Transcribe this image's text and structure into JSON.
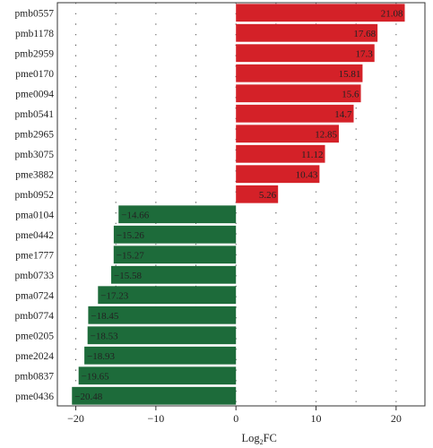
{
  "chart_data": {
    "type": "bar",
    "orientation": "horizontal",
    "categories": [
      "pmb0557",
      "pmb1178",
      "pmb2959",
      "pme0170",
      "pme0094",
      "pmb0541",
      "pmb2965",
      "pmb3075",
      "pme3882",
      "pmb0952",
      "pma0104",
      "pme0442",
      "pme1777",
      "pmb0733",
      "pma0724",
      "pmb0774",
      "pme0205",
      "pme2024",
      "pmb0837",
      "pme0436"
    ],
    "values": [
      21.08,
      17.68,
      17.3,
      15.81,
      15.6,
      14.7,
      12.85,
      11.12,
      10.43,
      5.26,
      -14.66,
      -15.26,
      -15.27,
      -15.58,
      -17.23,
      -18.45,
      -18.53,
      -18.93,
      -19.65,
      -20.48
    ],
    "value_labels": [
      "21.08",
      "17.68",
      "17.3",
      "15.81",
      "15.6",
      "14.7",
      "12.85",
      "11.12",
      "10.43",
      "5.26",
      "−14.66",
      "−15.26",
      "−15.27",
      "−15.58",
      "−17.23",
      "−18.45",
      "−18.53",
      "−18.93",
      "−19.65",
      "−20.48"
    ],
    "xlabel_main": "Log",
    "xlabel_sub": "2",
    "xlabel_end": "FC",
    "xlim": [
      -22.3,
      23.6
    ],
    "xticks": [
      -20,
      -10,
      0,
      10,
      20
    ],
    "xtick_labels": [
      "−20",
      "−10",
      "0",
      "10",
      "20"
    ],
    "grid": "dotted",
    "colors": {
      "positive": "#d42128",
      "negative": "#1d6b3a",
      "grid": "#555555",
      "axis": "#333333"
    }
  }
}
